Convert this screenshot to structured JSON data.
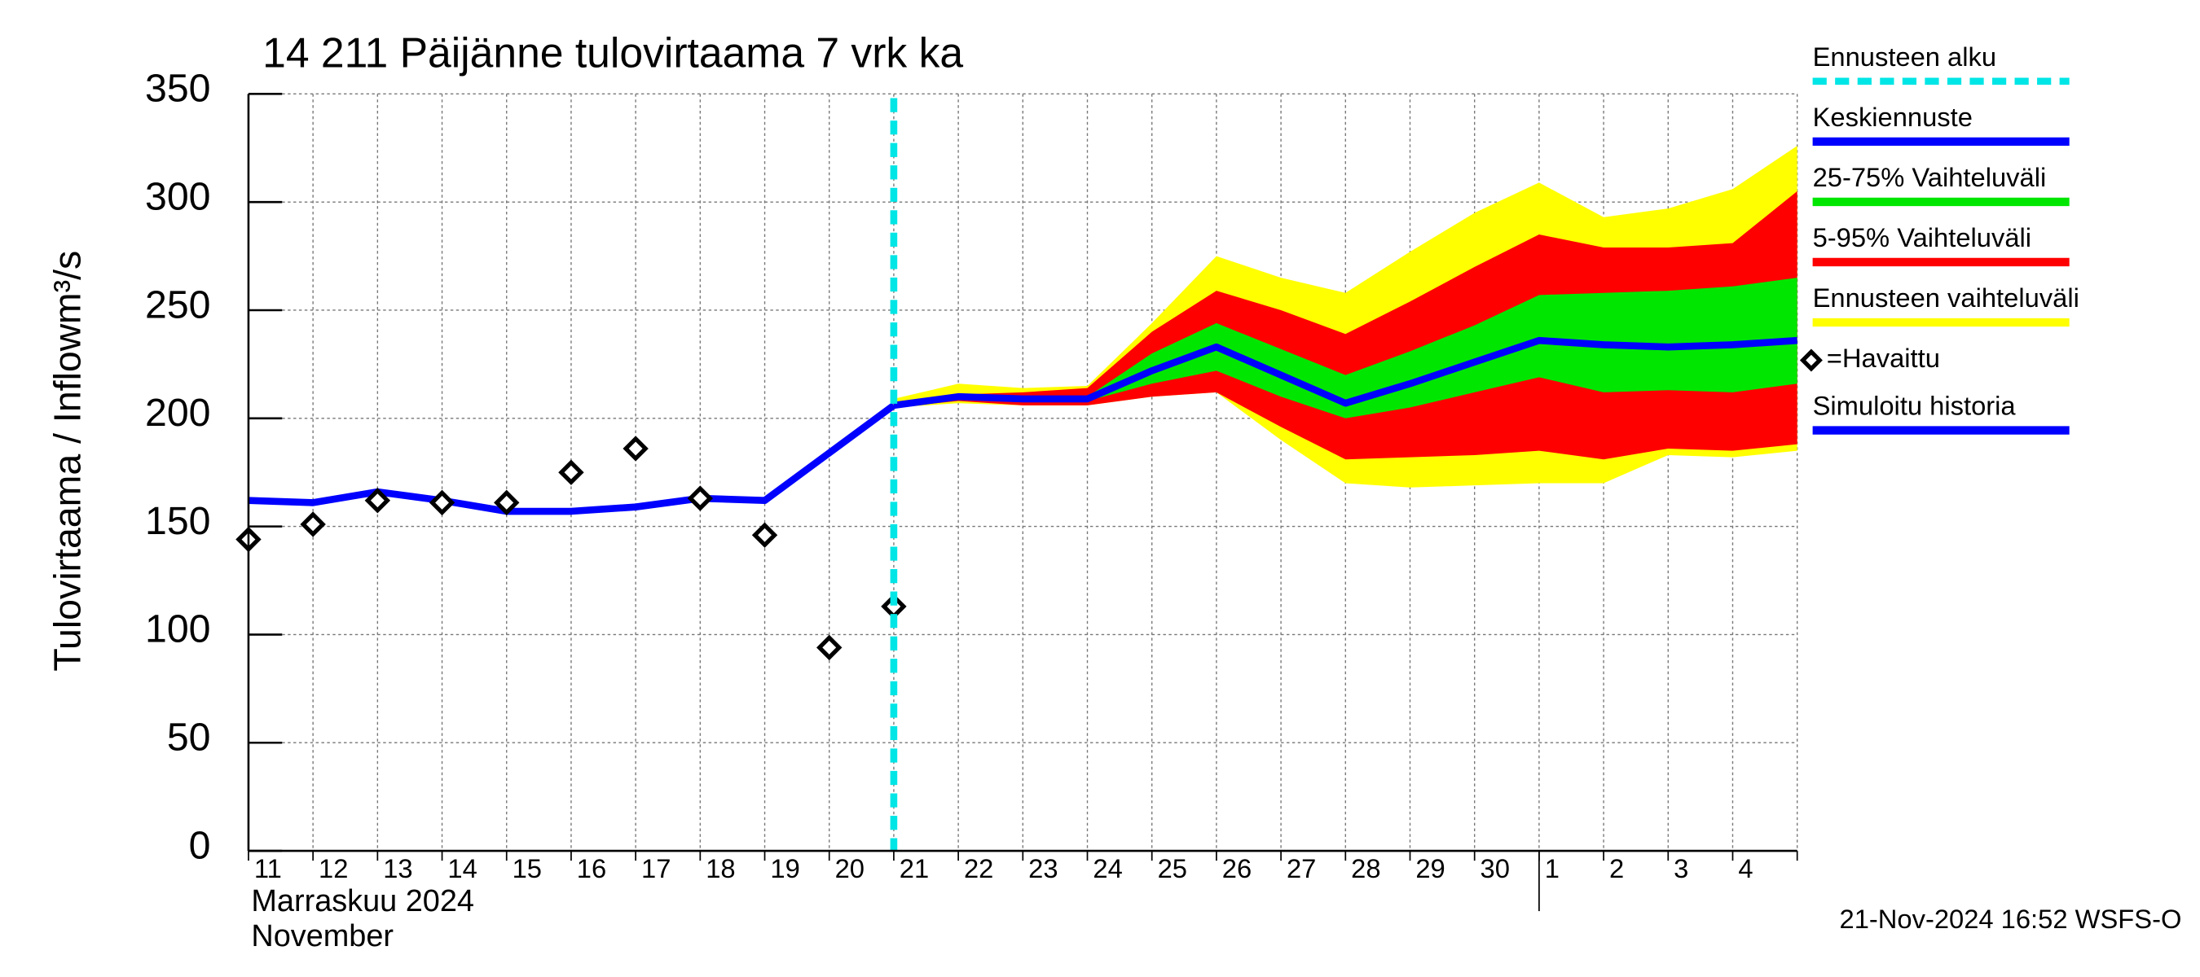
{
  "chart_data": {
    "type": "line",
    "title": "14 211 Päijänne tulovirtaama 7 vrk ka",
    "ylabel": "Tulovirtaama / Inflow",
    "yunit": "m³/s",
    "month_label": "Marraskuu 2024",
    "month_label_en": "November",
    "footer": "21-Nov-2024 16:52 WSFS-O",
    "categories": [
      "11",
      "12",
      "13",
      "14",
      "15",
      "16",
      "17",
      "18",
      "19",
      "20",
      "21",
      "22",
      "23",
      "24",
      "25",
      "26",
      "27",
      "28",
      "29",
      "30",
      "1",
      "2",
      "3",
      "4",
      null
    ],
    "ylim": [
      0,
      350
    ],
    "yticks": [
      0,
      50,
      100,
      150,
      200,
      250,
      300,
      350
    ],
    "grid": true,
    "forecast_start": {
      "name": "Ennusteen alku",
      "color": "#00e5e5",
      "index": 10
    },
    "series": [
      {
        "name": "Keskiennuste",
        "type": "line",
        "color": "#0000ff",
        "values": [
          null,
          null,
          null,
          null,
          null,
          null,
          null,
          null,
          null,
          null,
          206,
          210,
          209,
          209,
          222,
          233,
          220,
          207,
          216,
          226,
          236,
          234,
          233,
          234,
          236
        ]
      },
      {
        "name": "25-75% Vaihteluväli",
        "type": "band",
        "color": "#00e600",
        "upper": [
          null,
          null,
          null,
          null,
          null,
          null,
          null,
          null,
          null,
          null,
          206,
          210,
          210,
          210,
          230,
          244,
          232,
          220,
          231,
          243,
          257,
          258,
          259,
          261,
          265
        ],
        "lower": [
          null,
          null,
          null,
          null,
          null,
          null,
          null,
          null,
          null,
          null,
          206,
          209,
          208,
          208,
          216,
          222,
          210,
          200,
          205,
          212,
          219,
          212,
          213,
          212,
          216
        ]
      },
      {
        "name": "5-95% Vaihteluväli",
        "type": "band",
        "color": "#ff0000",
        "upper": [
          null,
          null,
          null,
          null,
          null,
          null,
          null,
          null,
          null,
          null,
          207,
          211,
          212,
          214,
          240,
          259,
          250,
          239,
          254,
          270,
          285,
          279,
          279,
          281,
          305
        ],
        "lower": [
          null,
          null,
          null,
          null,
          null,
          null,
          null,
          null,
          null,
          null,
          205,
          208,
          206,
          206,
          210,
          212,
          196,
          181,
          182,
          183,
          185,
          181,
          186,
          185,
          188
        ]
      },
      {
        "name": "Ennusteen vaihteluväli",
        "type": "band",
        "color": "#ffff00",
        "upper": [
          null,
          null,
          null,
          null,
          null,
          null,
          null,
          null,
          null,
          null,
          209,
          216,
          214,
          215,
          244,
          275,
          265,
          258,
          277,
          295,
          309,
          293,
          297,
          306,
          326
        ],
        "lower": [
          null,
          null,
          null,
          null,
          null,
          null,
          null,
          null,
          null,
          null,
          205,
          207,
          206,
          206,
          210,
          212,
          190,
          170,
          168,
          169,
          170,
          170,
          183,
          182,
          185
        ]
      },
      {
        "name": "=Havaittu",
        "type": "scatter",
        "color": "#000000",
        "values": [
          144,
          151,
          162,
          161,
          161,
          175,
          186,
          163,
          146,
          94,
          113,
          null,
          null,
          null,
          null,
          null,
          null,
          null,
          null,
          null,
          null,
          null,
          null,
          null,
          null
        ]
      },
      {
        "name": "Simuloitu historia",
        "type": "line",
        "color": "#0000ff",
        "values": [
          162,
          161,
          166,
          162,
          157,
          157,
          159,
          163,
          162,
          184,
          206,
          null,
          null,
          null,
          null,
          null,
          null,
          null,
          null,
          null,
          null,
          null,
          null,
          null,
          null
        ]
      }
    ]
  }
}
